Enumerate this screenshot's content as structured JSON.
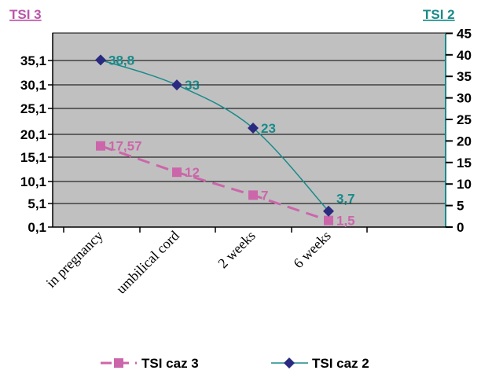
{
  "chart_data": {
    "type": "line",
    "categories": [
      "in pregnancy",
      "umbilical cord",
      "2 weeks",
      "6 weeks"
    ],
    "left_axis": {
      "title": "TSI 3",
      "ticks": [
        "0,1",
        "5,1",
        "10,1",
        "15,1",
        "20,1",
        "25,1",
        "30,1",
        "35,1"
      ],
      "min": 0.1,
      "max": 35.1,
      "step": 5
    },
    "right_axis": {
      "title": "TSI 2",
      "ticks": [
        "0",
        "5",
        "10",
        "15",
        "20",
        "25",
        "30",
        "35",
        "40",
        "45"
      ],
      "min": 0,
      "max": 45,
      "step": 5
    },
    "series": [
      {
        "name": "TSI  caz 3",
        "axis": "left",
        "values": [
          17.57,
          12,
          7,
          1.5
        ],
        "labels": [
          "17,57",
          "12",
          "7",
          "1,5"
        ],
        "color": "#CC66AA",
        "marker": "square",
        "line": "dashed"
      },
      {
        "name": "TSI caz 2",
        "axis": "right",
        "values": [
          38.8,
          33,
          23,
          3.7
        ],
        "labels": [
          "38,8",
          "33",
          "23",
          "3,7"
        ],
        "color": "#1A8A8A",
        "marker_color": "#2A2A80",
        "marker": "diamond",
        "line": "solid"
      }
    ],
    "plot_background": "#C0C0C0",
    "grid": true,
    "legend_position": "bottom"
  }
}
